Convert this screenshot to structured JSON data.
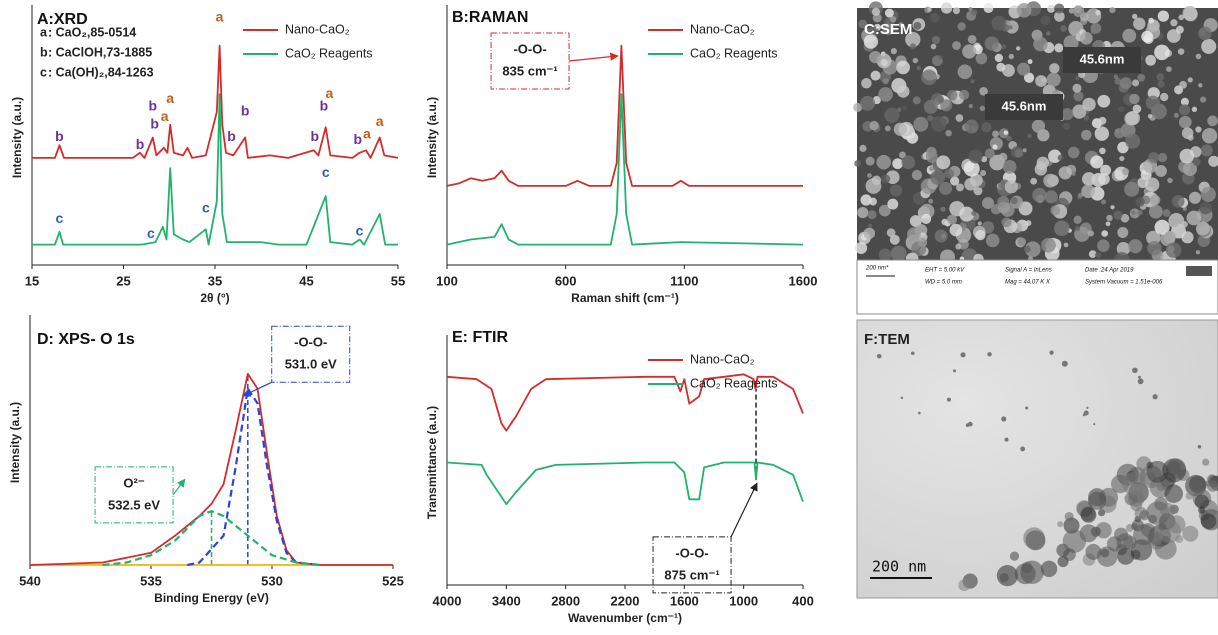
{
  "chart_data": [
    {
      "type": "line",
      "title": "A:XRD",
      "x_label": "2θ (°)",
      "y_label": "Intensity (a.u.)",
      "xlim": [
        15,
        55
      ],
      "xticks": [
        15,
        25,
        35,
        45,
        55
      ],
      "ylim": [
        0,
        100
      ],
      "legend": "upper right",
      "phases": [
        {
          "letter": "a",
          "text": ": CaO₂,85-0514",
          "color": "#c0601a"
        },
        {
          "letter": "b",
          "text": ": CaClOH,73-1885",
          "color": "#7030a0"
        },
        {
          "letter": "c",
          "text": ": Ca(OH)₂,84-1263",
          "color": "#2e5fb6"
        }
      ],
      "series": [
        {
          "name": "Nano-CaO₂",
          "color": "#d62b2b",
          "x": [
            15,
            17.5,
            18,
            18.5,
            26,
            26.8,
            27.3,
            28.2,
            28.6,
            29.4,
            29.8,
            30.1,
            30.5,
            31.5,
            32,
            32.5,
            34,
            35.2,
            35.5,
            35.8,
            36.2,
            37,
            38.3,
            38.6,
            41,
            43,
            45.8,
            46.3,
            47.1,
            47.6,
            50,
            50.8,
            51.5,
            52,
            53,
            53.5,
            55
          ],
          "values": [
            42,
            42,
            47,
            42,
            42,
            44,
            42,
            50,
            43,
            46,
            44,
            55,
            44,
            43,
            46,
            42,
            43,
            60,
            86,
            55,
            44,
            43,
            50,
            42,
            43,
            42,
            45,
            43,
            54,
            43,
            42,
            44,
            45,
            42,
            50,
            43,
            42
          ]
        },
        {
          "name": "CaO₂ Reagents",
          "color": "#21b36b",
          "x": [
            15,
            17.5,
            18,
            18.4,
            27,
            28.5,
            29.3,
            29.7,
            30.1,
            30.5,
            31.5,
            32.2,
            34,
            34.3,
            35.2,
            35.5,
            35.8,
            36.3,
            40,
            42,
            45,
            47.1,
            47.6,
            50,
            50.8,
            51.3,
            53,
            53.6,
            55
          ],
          "values": [
            8,
            8,
            13,
            8,
            8,
            9,
            15,
            10,
            38,
            12,
            10,
            9,
            14,
            8,
            25,
            67,
            20,
            9,
            9,
            8,
            8,
            27,
            9,
            8,
            10,
            8,
            20,
            8,
            8
          ]
        }
      ],
      "annotations": [
        {
          "text": "a",
          "x": 35.5,
          "y": 97,
          "color": "#c0601a"
        },
        {
          "text": "a",
          "x": 30.1,
          "y": 65,
          "color": "#c0601a"
        },
        {
          "text": "a",
          "x": 29.5,
          "y": 58,
          "color": "#c0601a"
        },
        {
          "text": "a",
          "x": 47.5,
          "y": 67,
          "color": "#c0601a"
        },
        {
          "text": "a",
          "x": 51.6,
          "y": 51,
          "color": "#c0601a"
        },
        {
          "text": "a",
          "x": 53,
          "y": 56,
          "color": "#c0601a"
        },
        {
          "text": "b",
          "x": 18,
          "y": 50,
          "color": "#7030a0"
        },
        {
          "text": "b",
          "x": 26.8,
          "y": 47,
          "color": "#7030a0"
        },
        {
          "text": "b",
          "x": 28.2,
          "y": 62,
          "color": "#7030a0"
        },
        {
          "text": "b",
          "x": 28.4,
          "y": 55,
          "color": "#7030a0"
        },
        {
          "text": "b",
          "x": 36.8,
          "y": 50,
          "color": "#7030a0"
        },
        {
          "text": "b",
          "x": 38.3,
          "y": 60,
          "color": "#7030a0"
        },
        {
          "text": "b",
          "x": 45.9,
          "y": 50,
          "color": "#7030a0"
        },
        {
          "text": "b",
          "x": 46.9,
          "y": 62,
          "color": "#7030a0"
        },
        {
          "text": "b",
          "x": 50.6,
          "y": 49,
          "color": "#7030a0"
        },
        {
          "text": "c",
          "x": 18,
          "y": 18,
          "color": "#2e5fb6"
        },
        {
          "text": "c",
          "x": 28,
          "y": 12,
          "color": "#2e5fb6"
        },
        {
          "text": "c",
          "x": 34,
          "y": 22,
          "color": "#2e5fb6"
        },
        {
          "text": "c",
          "x": 47.1,
          "y": 36,
          "color": "#2e5fb6"
        },
        {
          "text": "c",
          "x": 50.8,
          "y": 13,
          "color": "#2e5fb6"
        }
      ]
    },
    {
      "type": "line",
      "title": "B:RAMAN",
      "x_label": "Raman shift (cm⁻¹)",
      "y_label": "Intensity (a.u.)",
      "xlim": [
        100,
        1600
      ],
      "xticks": [
        100,
        600,
        1100,
        1600
      ],
      "ylim": [
        0,
        100
      ],
      "legend": "upper right",
      "series": [
        {
          "name": "Nano-CaO₂",
          "color": "#d62b2b",
          "x": [
            100,
            150,
            200,
            250,
            300,
            330,
            360,
            400,
            600,
            650,
            700,
            790,
            815,
            835,
            855,
            880,
            1050,
            1085,
            1120,
            1600
          ],
          "values": [
            31,
            32,
            34,
            33,
            34,
            37,
            33,
            31,
            31,
            33,
            31,
            31,
            40,
            86,
            40,
            31,
            31,
            33,
            31,
            31
          ]
        },
        {
          "name": "CaO₂ Reagents",
          "color": "#21b36b",
          "x": [
            100,
            200,
            300,
            330,
            360,
            400,
            600,
            790,
            815,
            835,
            855,
            880,
            1085,
            1600
          ],
          "values": [
            8,
            10,
            11,
            16,
            10,
            8,
            8,
            8,
            20,
            67,
            20,
            8,
            9,
            8
          ]
        }
      ],
      "boxes": [
        {
          "lines": [
            "-O-O-",
            "835 cm⁻¹"
          ],
          "x": 450,
          "y": 80,
          "target": [
            820,
            82
          ],
          "color": "#d62b2b"
        }
      ]
    },
    {
      "type": "line",
      "title": "D: XPS- O 1s",
      "x_label": "Binding Energy (eV)",
      "y_label": "Intensity (a.u.)",
      "xlim": [
        540,
        525
      ],
      "xticks": [
        540,
        535,
        530,
        525
      ],
      "ylim": [
        0,
        100
      ],
      "series": [
        {
          "color": "#f0b400",
          "x": [
            540,
            525
          ],
          "values": [
            0,
            0
          ]
        },
        {
          "color": "#d62b2b",
          "x": [
            540,
            537,
            535,
            534,
            533,
            532.5,
            532,
            531.5,
            531,
            530.6,
            530.2,
            529.8,
            529.4,
            529,
            528,
            525
          ],
          "values": [
            0,
            1,
            5,
            12,
            20,
            25,
            33,
            55,
            78,
            72,
            45,
            20,
            6,
            1,
            0,
            0
          ]
        },
        {
          "color": "#2746d6",
          "dash": true,
          "x": [
            533.5,
            533,
            532,
            531.5,
            531,
            530.6,
            530.2,
            529.8,
            529.4,
            529,
            528
          ],
          "values": [
            0,
            1,
            12,
            40,
            72,
            66,
            40,
            18,
            5,
            1,
            0
          ]
        },
        {
          "color": "#21b36b",
          "dash": true,
          "x": [
            537,
            536,
            535,
            534,
            533,
            532.5,
            532,
            531,
            530,
            529,
            528
          ],
          "values": [
            0,
            1,
            4,
            10,
            20,
            22,
            20,
            12,
            4,
            1,
            0
          ]
        }
      ],
      "guides": [
        {
          "x": 532.5,
          "y": [
            0,
            22
          ],
          "color": "#21b36b"
        },
        {
          "x": 531,
          "y": [
            0,
            78
          ],
          "color": "#2746d6"
        }
      ],
      "boxes": [
        {
          "lines": [
            "-O-O-",
            "531.0 eV"
          ],
          "x": 528.4,
          "y": 86,
          "target": [
            531.2,
            69
          ],
          "color": "#2746d6"
        },
        {
          "lines": [
            "O²⁻",
            "532.5 eV"
          ],
          "x": 535.7,
          "y": 28.6,
          "target": [
            533.6,
            35
          ],
          "color": "#21b36b"
        }
      ]
    },
    {
      "type": "line",
      "title": "E: FTIR",
      "x_label": "Wavenumber (cm⁻¹)",
      "y_label": "Transmittance (a.u.)",
      "xlim": [
        4000,
        400
      ],
      "xticks": [
        4000,
        3400,
        2800,
        2200,
        1600,
        1000,
        400
      ],
      "ylim": [
        0,
        100
      ],
      "legend": "upper right",
      "series": [
        {
          "name": "Nano-CaO₂",
          "color": "#d62b2b",
          "x": [
            4000,
            3700,
            3550,
            3450,
            3400,
            3300,
            3150,
            3000,
            2000,
            1700,
            1640,
            1600,
            1550,
            1450,
            1400,
            1200,
            1000,
            900,
            880,
            860,
            700,
            500,
            400
          ],
          "values": [
            85,
            84,
            80,
            66,
            63,
            69,
            80,
            84,
            85,
            85,
            79,
            84,
            74,
            77,
            84,
            85,
            86,
            84,
            80,
            85,
            85,
            80,
            70
          ]
        },
        {
          "name": "CaO₂ Reagents",
          "color": "#21b36b",
          "x": [
            4000,
            3650,
            3600,
            3450,
            3400,
            3300,
            3100,
            2900,
            2000,
            1700,
            1600,
            1550,
            1450,
            1400,
            1200,
            1000,
            890,
            875,
            860,
            700,
            500,
            400
          ],
          "values": [
            50,
            49,
            45,
            36,
            33,
            38,
            47,
            49,
            50,
            50,
            46,
            35,
            35,
            48,
            50,
            50,
            50,
            43,
            50,
            49,
            45,
            34
          ]
        }
      ],
      "guides": [
        {
          "x": 875,
          "y": [
            43,
            80
          ],
          "color": "#222"
        }
      ],
      "boxes": [
        {
          "lines": [
            "-O-O-",
            "875 cm⁻¹"
          ],
          "x": 1522,
          "y": 8.2,
          "target": [
            865,
            41.6
          ],
          "color": "#222"
        }
      ]
    }
  ],
  "images": {
    "sem": {
      "title": "C:SEM",
      "labels": [
        "45.6nm",
        "45.6nm"
      ],
      "footer": [
        "200 nm*",
        "EHT = 5.00 kV",
        "WD = 5.0 mm",
        "Signal A = InLens",
        "Mag = 44.07 K X",
        "Date :24 Apr 2019",
        "System Vacuum = 1.51e-006"
      ]
    },
    "tem": {
      "title": "F:TEM",
      "scale": "200 nm"
    }
  }
}
